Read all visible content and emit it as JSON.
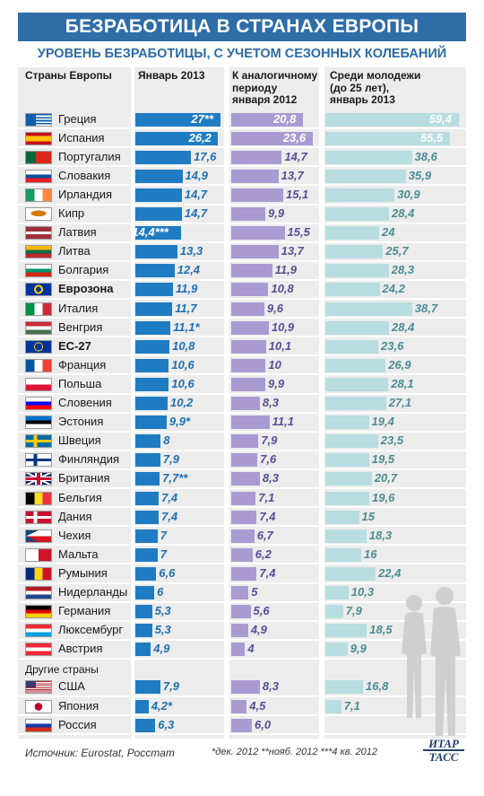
{
  "title": "БЕЗРАБОТИЦА В СТРАНАХ ЕВРОПЫ",
  "subtitle": "УРОВЕНЬ БЕЗРАБОТИЦЫ, С УЧЕТОМ СЕЗОННЫХ КОЛЕБАНИЙ",
  "headers": {
    "countries": "Страны Европы",
    "jan2013": "Январь 2013",
    "prev_period": [
      "К аналогичному",
      "периоду",
      "января 2012"
    ],
    "youth": [
      "Среди молодежи",
      "(до 25 лет),",
      "январь 2013"
    ]
  },
  "colors": {
    "title_bg": "#2e6da8",
    "col_bg": "#ececec",
    "bar_jan2013": "#1f7cc2",
    "text_jan2013": "#1f6fb0",
    "bar_prev": "#a99bd2",
    "text_prev": "#5a4d96",
    "bar_youth": "#b7dde0",
    "text_youth": "#4a8c91"
  },
  "other_countries_label": "Другие страны",
  "source": "Источник: Eurostat, Росстат",
  "notes": "*дек. 2012  **нояб. 2012  ***4 кв. 2012",
  "logo": [
    "ИТАР",
    "ТАСС"
  ],
  "chart_data": {
    "type": "bar",
    "categories": [
      "Греция",
      "Испания",
      "Португалия",
      "Словакия",
      "Ирландия",
      "Кипр",
      "Латвия",
      "Литва",
      "Болгария",
      "Еврозона",
      "Италия",
      "Венгрия",
      "ЕС-27",
      "Франция",
      "Польша",
      "Словения",
      "Эстония",
      "Швеция",
      "Финляндия",
      "Британия",
      "Бельгия",
      "Дания",
      "Чехия",
      "Мальта",
      "Румыния",
      "Нидерланды",
      "Германия",
      "Люксембург",
      "Австрия",
      "США",
      "Япония",
      "Россия"
    ],
    "flags": [
      "greece-flag-icon",
      "spain-flag-icon",
      "portugal-flag-icon",
      "slovakia-flag-icon",
      "ireland-flag-icon",
      "cyprus-flag-icon",
      "latvia-flag-icon",
      "lithuania-flag-icon",
      "bulgaria-flag-icon",
      "eurozone-flag-icon",
      "italy-flag-icon",
      "hungary-flag-icon",
      "eu-flag-icon",
      "france-flag-icon",
      "poland-flag-icon",
      "slovenia-flag-icon",
      "estonia-flag-icon",
      "sweden-flag-icon",
      "finland-flag-icon",
      "uk-flag-icon",
      "belgium-flag-icon",
      "denmark-flag-icon",
      "czech-flag-icon",
      "malta-flag-icon",
      "romania-flag-icon",
      "netherlands-flag-icon",
      "germany-flag-icon",
      "luxembourg-flag-icon",
      "austria-flag-icon",
      "usa-flag-icon",
      "japan-flag-icon",
      "russia-flag-icon"
    ],
    "bold_categories": [
      "Еврозона",
      "ЕС-27"
    ],
    "series": [
      {
        "name": "Январь 2013",
        "values": [
          27,
          26.2,
          17.6,
          14.9,
          14.7,
          14.7,
          14.4,
          13.3,
          12.4,
          11.9,
          11.7,
          11.1,
          10.8,
          10.6,
          10.6,
          10.2,
          9.9,
          8,
          7.9,
          7.7,
          7.4,
          7.4,
          7,
          7,
          6.6,
          6,
          5.3,
          5.3,
          4.9,
          7.9,
          4.2,
          6.3
        ],
        "labels": [
          "27**",
          "26,2",
          "17,6",
          "14,9",
          "14,7",
          "14,7",
          "14,4***",
          "13,3",
          "12,4",
          "11,9",
          "11,7",
          "11,1*",
          "10,8",
          "10,6",
          "10,6",
          "10,2",
          "9,9*",
          "8",
          "7,9",
          "7,7**",
          "7,4",
          "7,4",
          "7",
          "7",
          "6,6",
          "6",
          "5,3",
          "5,3",
          "4,9",
          "7,9",
          "4,2*",
          "6,3"
        ]
      },
      {
        "name": "К аналогичному периоду января 2012",
        "values": [
          20.8,
          23.6,
          14.7,
          13.7,
          15.1,
          9.9,
          15.5,
          13.7,
          11.9,
          10.8,
          9.6,
          10.9,
          10.1,
          10,
          9.9,
          8.3,
          11.1,
          7.9,
          7.6,
          8.3,
          7.1,
          7.4,
          6.7,
          6.2,
          7.4,
          5,
          5.6,
          4.9,
          4,
          8.3,
          4.5,
          6.0
        ],
        "labels": [
          "20,8",
          "23,6",
          "14,7",
          "13,7",
          "15,1",
          "9,9",
          "15,5",
          "13,7",
          "11,9",
          "10,8",
          "9,6",
          "10,9",
          "10,1",
          "10",
          "9,9",
          "8,3",
          "11,1",
          "7,9",
          "7,6",
          "8,3",
          "7,1",
          "7,4",
          "6,7",
          "6,2",
          "7,4",
          "5",
          "5,6",
          "4,9",
          "4",
          "8,3",
          "4,5",
          "6,0"
        ]
      },
      {
        "name": "Среди молодежи (до 25 лет), январь 2013",
        "values": [
          59.4,
          55.5,
          38.6,
          35.9,
          30.9,
          28.4,
          24,
          25.7,
          28.3,
          24.2,
          38.7,
          28.4,
          23.6,
          26.9,
          28.1,
          27.1,
          19.4,
          23.5,
          19.5,
          20.7,
          19.6,
          15,
          18.3,
          16,
          22.4,
          10.3,
          7.9,
          18.5,
          9.9,
          16.8,
          7.1,
          null
        ],
        "labels": [
          "59,4",
          "55,5",
          "38,6",
          "35,9",
          "30,9",
          "28,4",
          "24",
          "25,7",
          "28,3",
          "24,2",
          "38,7",
          "28,4",
          "23,6",
          "26,9",
          "28,1",
          "27,1",
          "19,4",
          "23,5",
          "19,5",
          "20,7",
          "19,6",
          "15",
          "18,3",
          "16",
          "22,4",
          "10,3",
          "7,9",
          "18,5",
          "9,9",
          "16,8",
          "7,1",
          ""
        ]
      }
    ]
  }
}
